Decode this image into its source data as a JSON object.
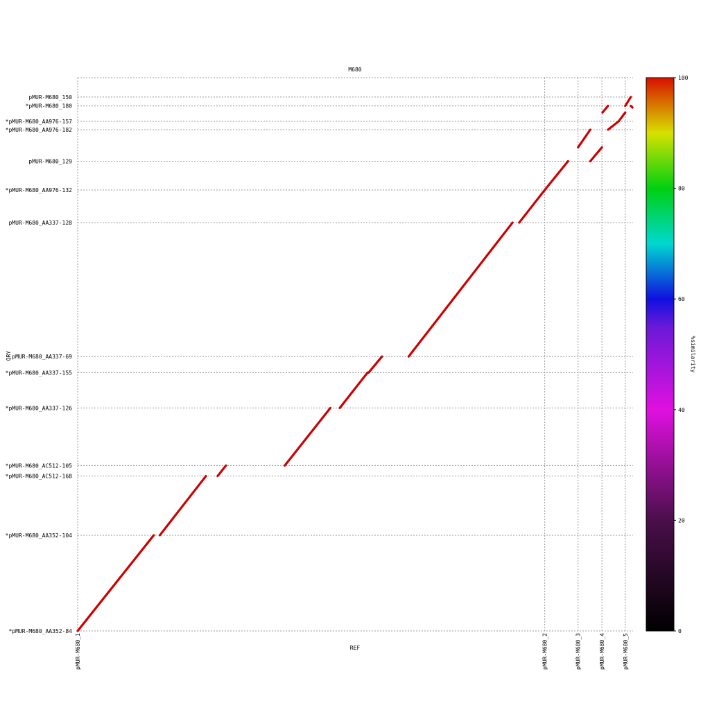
{
  "chart_data": {
    "type": "scatter",
    "title": "M680",
    "xlabel": "REF",
    "ylabel": "QRY",
    "xlim": [
      0,
      1000
    ],
    "ylim": [
      0,
      1000
    ],
    "grid": true,
    "y_contigs": [
      {
        "label": "*pMUR-M680_AA352-84",
        "start": 0
      },
      {
        "label": "*pMUR-M680_AA352-104",
        "start": 173
      },
      {
        "label": "*pMUR-M680_AC512-168",
        "start": 280
      },
      {
        "label": "*pMUR-M680_AC512-105",
        "start": 299
      },
      {
        "label": "*pMUR-M680_AA337-126",
        "start": 403
      },
      {
        "label": "*pMUR-M680_AA337-155",
        "start": 467
      },
      {
        "label": "pMUR-M680_AA337-69",
        "start": 496
      },
      {
        "label": "pMUR-M680_AA337-128",
        "start": 738
      },
      {
        "label": "*pMUR-M680_AA976-132",
        "start": 797
      },
      {
        "label": "pMUR-M680_129",
        "start": 849
      },
      {
        "label": "*pMUR-M680_AA976-182",
        "start": 906
      },
      {
        "label": "*pMUR-M680_AA976-157",
        "start": 921
      },
      {
        "label": "*pMUR-M680_180",
        "start": 949
      },
      {
        "label": "pMUR-M680_150",
        "start": 965
      }
    ],
    "x_contigs": [
      {
        "label": "pMUR-M680_1",
        "start": 0
      },
      {
        "label": "pMUR-M680_2",
        "start": 841
      },
      {
        "label": "pMUR-M680_3",
        "start": 901
      },
      {
        "label": "pMUR-M680_4",
        "start": 944
      },
      {
        "label": "pMUR-M680_5",
        "start": 986
      }
    ],
    "alignments": [
      {
        "x": [
          0,
          137
        ],
        "y": [
          0,
          173
        ],
        "similarity": 99
      },
      {
        "x": [
          148,
          231
        ],
        "y": [
          173,
          280
        ],
        "similarity": 99
      },
      {
        "x": [
          252,
          267
        ],
        "y": [
          280,
          299
        ],
        "similarity": 99
      },
      {
        "x": [
          373,
          455
        ],
        "y": [
          299,
          403
        ],
        "similarity": 99
      },
      {
        "x": [
          472,
          522
        ],
        "y": [
          403,
          467
        ],
        "similarity": 99
      },
      {
        "x": [
          524,
          548
        ],
        "y": [
          467,
          496
        ],
        "similarity": 99
      },
      {
        "x": [
          596,
          783
        ],
        "y": [
          496,
          738
        ],
        "similarity": 99
      },
      {
        "x": [
          795,
          841
        ],
        "y": [
          738,
          797
        ],
        "similarity": 99
      },
      {
        "x": [
          841,
          883
        ],
        "y": [
          797,
          849
        ],
        "similarity": 99
      },
      {
        "x": [
          901,
          923
        ],
        "y": [
          874,
          906
        ],
        "similarity": 99
      },
      {
        "x": [
          923,
          944
        ],
        "y": [
          849,
          874
        ],
        "similarity": 99
      },
      {
        "x": [
          955,
          974
        ],
        "y": [
          906,
          921
        ],
        "similarity": 99
      },
      {
        "x": [
          974,
          986
        ],
        "y": [
          921,
          937
        ],
        "similarity": 99
      },
      {
        "x": [
          945,
          955
        ],
        "y": [
          937,
          949
        ],
        "similarity": 99
      },
      {
        "x": [
          986,
          996
        ],
        "y": [
          949,
          965
        ],
        "similarity": 99
      },
      {
        "x": [
          996,
          999
        ],
        "y": [
          949,
          946
        ],
        "similarity": 99
      }
    ],
    "colorbar": {
      "label": "%similarity",
      "min": 0,
      "max": 100,
      "ticks": [
        0,
        20,
        40,
        60,
        80,
        100
      ],
      "stops": [
        {
          "v": 0,
          "color": "#000000"
        },
        {
          "v": 20,
          "color": "#4a0f4a"
        },
        {
          "v": 40,
          "color": "#e010e0"
        },
        {
          "v": 55,
          "color": "#6a1ad8"
        },
        {
          "v": 60,
          "color": "#1010e0"
        },
        {
          "v": 70,
          "color": "#00d8d0"
        },
        {
          "v": 80,
          "color": "#00d010"
        },
        {
          "v": 90,
          "color": "#d8e000"
        },
        {
          "v": 100,
          "color": "#d81000"
        }
      ]
    },
    "dot_color": "#cc0000"
  }
}
